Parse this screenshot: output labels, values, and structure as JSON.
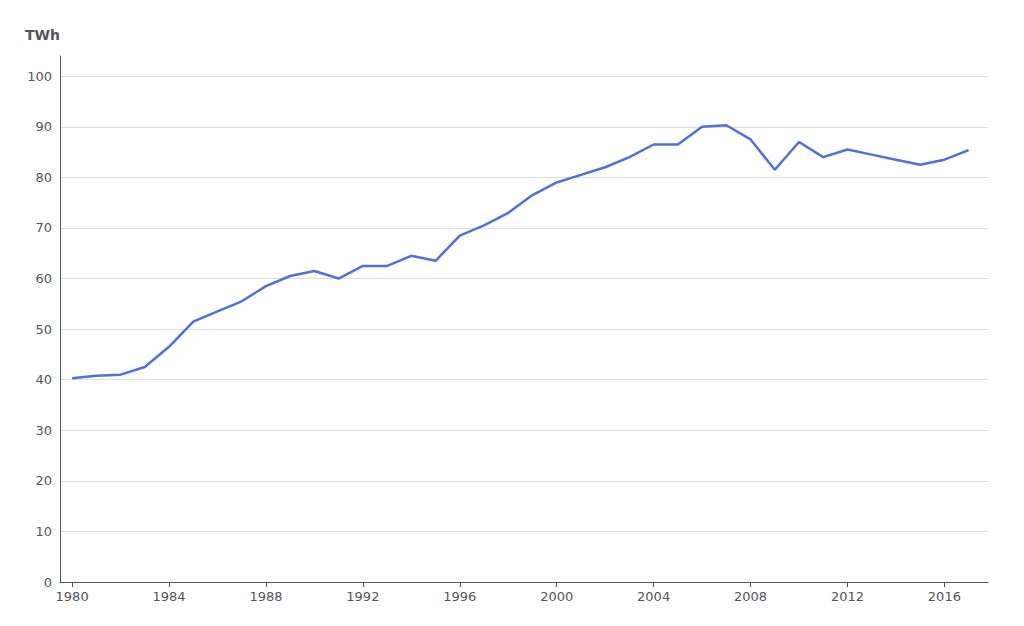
{
  "chart_data": {
    "type": "line",
    "y_label": "TWh",
    "x": [
      1980,
      1981,
      1982,
      1983,
      1984,
      1985,
      1986,
      1987,
      1988,
      1989,
      1990,
      1991,
      1992,
      1993,
      1994,
      1995,
      1996,
      1997,
      1998,
      1999,
      2000,
      2001,
      2002,
      2003,
      2004,
      2005,
      2006,
      2007,
      2008,
      2009,
      2010,
      2011,
      2012,
      2013,
      2014,
      2015,
      2016,
      2017
    ],
    "values": [
      40.3,
      40.8,
      41.0,
      42.5,
      46.5,
      51.5,
      53.5,
      55.5,
      58.5,
      60.5,
      61.5,
      60.0,
      62.5,
      62.5,
      64.5,
      63.5,
      68.5,
      70.5,
      73.0,
      76.5,
      79.0,
      80.5,
      82.0,
      84.0,
      86.5,
      86.5,
      90.0,
      90.3,
      87.5,
      81.5,
      87.0,
      84.0,
      85.5,
      84.5,
      83.5,
      82.5,
      83.5,
      85.4
    ],
    "xlim": [
      1979.5,
      2017.8
    ],
    "xticks": [
      1980,
      1984,
      1988,
      1992,
      1996,
      2000,
      2004,
      2008,
      2012,
      2016
    ],
    "ylim": [
      0,
      104
    ],
    "yticks": [
      0,
      10,
      20,
      30,
      40,
      50,
      60,
      70,
      80,
      90,
      100
    ],
    "grid": true
  }
}
